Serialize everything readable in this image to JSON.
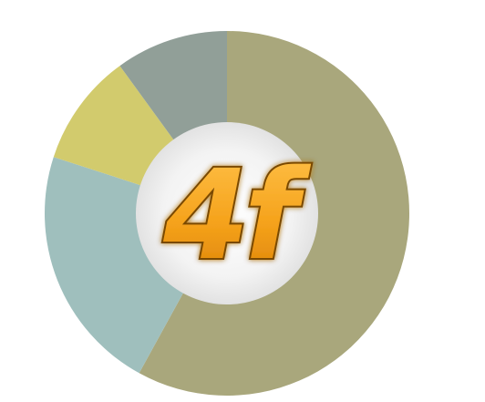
{
  "chart_data": {
    "type": "pie",
    "variant": "donut",
    "title": "",
    "slices": [
      {
        "value": 58,
        "color": "#a9a77c"
      },
      {
        "value": 22,
        "color": "#9fbfbd"
      },
      {
        "value": 10,
        "color": "#d2cb6d"
      },
      {
        "value": 10,
        "color": "#919f98"
      }
    ],
    "legend": "none",
    "start_angle_deg": 0,
    "direction": "clockwise"
  },
  "logo": {
    "text": "4f",
    "fill_color": "#f5a21b",
    "outline_color": "#7a4a05",
    "hub_color": "#f2f2f2"
  }
}
